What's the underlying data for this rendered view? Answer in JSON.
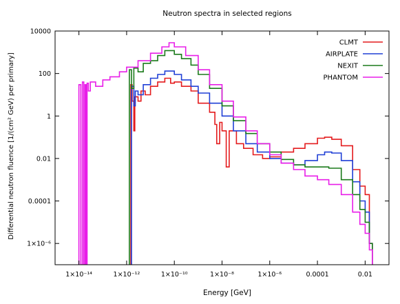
{
  "chart_data": {
    "type": "line",
    "title": "Neutron spectra in selected regions",
    "xlabel": "Energy [GeV]",
    "ylabel": "Differential neutron fluence [1/(cm² GeV) per primary]",
    "xscale": "log",
    "yscale": "log",
    "xlim": [
      1e-15,
      0.1
    ],
    "ylim": [
      1e-07,
      10000
    ],
    "grid": false,
    "legend_position": "top-right",
    "x_ticks": [
      {
        "value": 1e-14,
        "label": "1×10⁻¹⁴"
      },
      {
        "value": 1e-12,
        "label": "1×10⁻¹²"
      },
      {
        "value": 1e-10,
        "label": "1×10⁻¹⁰"
      },
      {
        "value": 1e-08,
        "label": "1×10⁻⁸"
      },
      {
        "value": 1e-06,
        "label": "1×10⁻⁶"
      },
      {
        "value": 0.0001,
        "label": "0.0001"
      },
      {
        "value": 0.01,
        "label": "0.01"
      }
    ],
    "y_ticks": [
      {
        "value": 10000,
        "label": "10000"
      },
      {
        "value": 100,
        "label": "100"
      },
      {
        "value": 1,
        "label": "1"
      },
      {
        "value": 0.01,
        "label": "0.01"
      },
      {
        "value": 0.0001,
        "label": "0.0001"
      },
      {
        "value": 1e-06,
        "label": "1×10⁻⁶"
      }
    ],
    "series": [
      {
        "name": "CLMT",
        "color": "#e41a1c",
        "points": [
          [
            1.5e-12,
            1e-07
          ],
          [
            1.5e-12,
            30
          ],
          [
            1.7e-12,
            5
          ],
          [
            2e-12,
            0.2
          ],
          [
            2.2e-12,
            8
          ],
          [
            3e-12,
            5
          ],
          [
            4e-12,
            15
          ],
          [
            6e-12,
            10
          ],
          [
            1e-11,
            25
          ],
          [
            2e-11,
            40
          ],
          [
            4e-11,
            60
          ],
          [
            7e-11,
            35
          ],
          [
            1e-10,
            40
          ],
          [
            2e-10,
            25
          ],
          [
            5e-10,
            15
          ],
          [
            1e-09,
            4
          ],
          [
            3e-09,
            1.5
          ],
          [
            5e-09,
            0.4
          ],
          [
            6e-09,
            0.05
          ],
          [
            8e-09,
            0.5
          ],
          [
            1e-08,
            0.2
          ],
          [
            1.5e-08,
            0.004
          ],
          [
            2e-08,
            0.2
          ],
          [
            4e-08,
            0.05
          ],
          [
            8e-08,
            0.03
          ],
          [
            2e-07,
            0.015
          ],
          [
            5e-07,
            0.01
          ],
          [
            1e-06,
            0.012
          ],
          [
            3e-06,
            0.02
          ],
          [
            1e-05,
            0.03
          ],
          [
            3e-05,
            0.05
          ],
          [
            0.0001,
            0.09
          ],
          [
            0.0002,
            0.1
          ],
          [
            0.0004,
            0.08
          ],
          [
            0.001,
            0.04
          ],
          [
            0.003,
            0.003
          ],
          [
            0.006,
            0.0005
          ],
          [
            0.01,
            0.0002
          ],
          [
            0.015,
            1e-06
          ],
          [
            0.02,
            1e-07
          ]
        ]
      },
      {
        "name": "AIRPLATE",
        "color": "#1f3fd6",
        "points": [
          [
            1.6e-12,
            1e-07
          ],
          [
            1.6e-12,
            25
          ],
          [
            2e-12,
            3
          ],
          [
            2.3e-12,
            15
          ],
          [
            3e-12,
            10
          ],
          [
            5e-12,
            30
          ],
          [
            1e-11,
            60
          ],
          [
            2e-11,
            90
          ],
          [
            4e-11,
            130
          ],
          [
            1e-10,
            90
          ],
          [
            2e-10,
            50
          ],
          [
            5e-10,
            25
          ],
          [
            1e-09,
            12
          ],
          [
            3e-09,
            4
          ],
          [
            1e-08,
            1
          ],
          [
            3e-08,
            0.2
          ],
          [
            1e-07,
            0.05
          ],
          [
            3e-07,
            0.02
          ],
          [
            1e-06,
            0.01
          ],
          [
            3e-06,
            0.006
          ],
          [
            1e-05,
            0.005
          ],
          [
            3e-05,
            0.008
          ],
          [
            0.0001,
            0.015
          ],
          [
            0.0002,
            0.02
          ],
          [
            0.0004,
            0.018
          ],
          [
            0.001,
            0.008
          ],
          [
            0.003,
            0.0008
          ],
          [
            0.006,
            0.0001
          ],
          [
            0.01,
            3e-05
          ],
          [
            0.015,
            1e-06
          ],
          [
            0.02,
            1e-07
          ]
        ]
      },
      {
        "name": "NEXIT",
        "color": "#1a7a1a",
        "points": [
          [
            1.3e-12,
            1e-07
          ],
          [
            1.3e-12,
            150
          ],
          [
            1.6e-12,
            20
          ],
          [
            2e-12,
            180
          ],
          [
            3e-12,
            120
          ],
          [
            5e-12,
            300
          ],
          [
            1e-11,
            400
          ],
          [
            2e-11,
            700
          ],
          [
            4e-11,
            1200
          ],
          [
            1e-10,
            800
          ],
          [
            2e-10,
            500
          ],
          [
            5e-10,
            250
          ],
          [
            1e-09,
            90
          ],
          [
            3e-09,
            20
          ],
          [
            1e-08,
            3
          ],
          [
            3e-08,
            0.6
          ],
          [
            1e-07,
            0.15
          ],
          [
            3e-07,
            0.05
          ],
          [
            1e-06,
            0.02
          ],
          [
            3e-06,
            0.009
          ],
          [
            1e-05,
            0.005
          ],
          [
            3e-05,
            0.004
          ],
          [
            0.0001,
            0.004
          ],
          [
            0.0003,
            0.0035
          ],
          [
            0.001,
            0.001
          ],
          [
            0.003,
            0.0002
          ],
          [
            0.006,
            4e-05
          ],
          [
            0.01,
            1e-05
          ],
          [
            0.015,
            1e-06
          ],
          [
            0.02,
            1e-07
          ]
        ]
      },
      {
        "name": "PHANTOM",
        "color": "#e81ee8",
        "points": [
          [
            1e-14,
            1e-07
          ],
          [
            1e-14,
            30
          ],
          [
            1.2e-14,
            1e-07
          ],
          [
            1.4e-14,
            40
          ],
          [
            1.6e-14,
            1e-07
          ],
          [
            1.8e-14,
            30
          ],
          [
            2e-14,
            1e-07
          ],
          [
            2.2e-14,
            35
          ],
          [
            2.5e-14,
            15
          ],
          [
            3e-14,
            40
          ],
          [
            5e-14,
            25
          ],
          [
            1e-13,
            50
          ],
          [
            2e-13,
            70
          ],
          [
            5e-13,
            120
          ],
          [
            1e-12,
            200
          ],
          [
            3e-12,
            400
          ],
          [
            1e-11,
            900
          ],
          [
            3e-11,
            1800
          ],
          [
            6e-11,
            2800
          ],
          [
            1e-10,
            1800
          ],
          [
            3e-10,
            700
          ],
          [
            1e-09,
            150
          ],
          [
            3e-09,
            30
          ],
          [
            1e-08,
            5
          ],
          [
            3e-08,
            0.9
          ],
          [
            1e-07,
            0.2
          ],
          [
            3e-07,
            0.05
          ],
          [
            1e-06,
            0.015
          ],
          [
            3e-06,
            0.006
          ],
          [
            1e-05,
            0.003
          ],
          [
            3e-05,
            0.0015
          ],
          [
            0.0001,
            0.001
          ],
          [
            0.0003,
            0.0006
          ],
          [
            0.001,
            0.0002
          ],
          [
            0.003,
            3e-05
          ],
          [
            0.006,
            8e-06
          ],
          [
            0.01,
            3e-06
          ],
          [
            0.015,
            5e-07
          ],
          [
            0.02,
            1e-07
          ]
        ]
      }
    ]
  }
}
